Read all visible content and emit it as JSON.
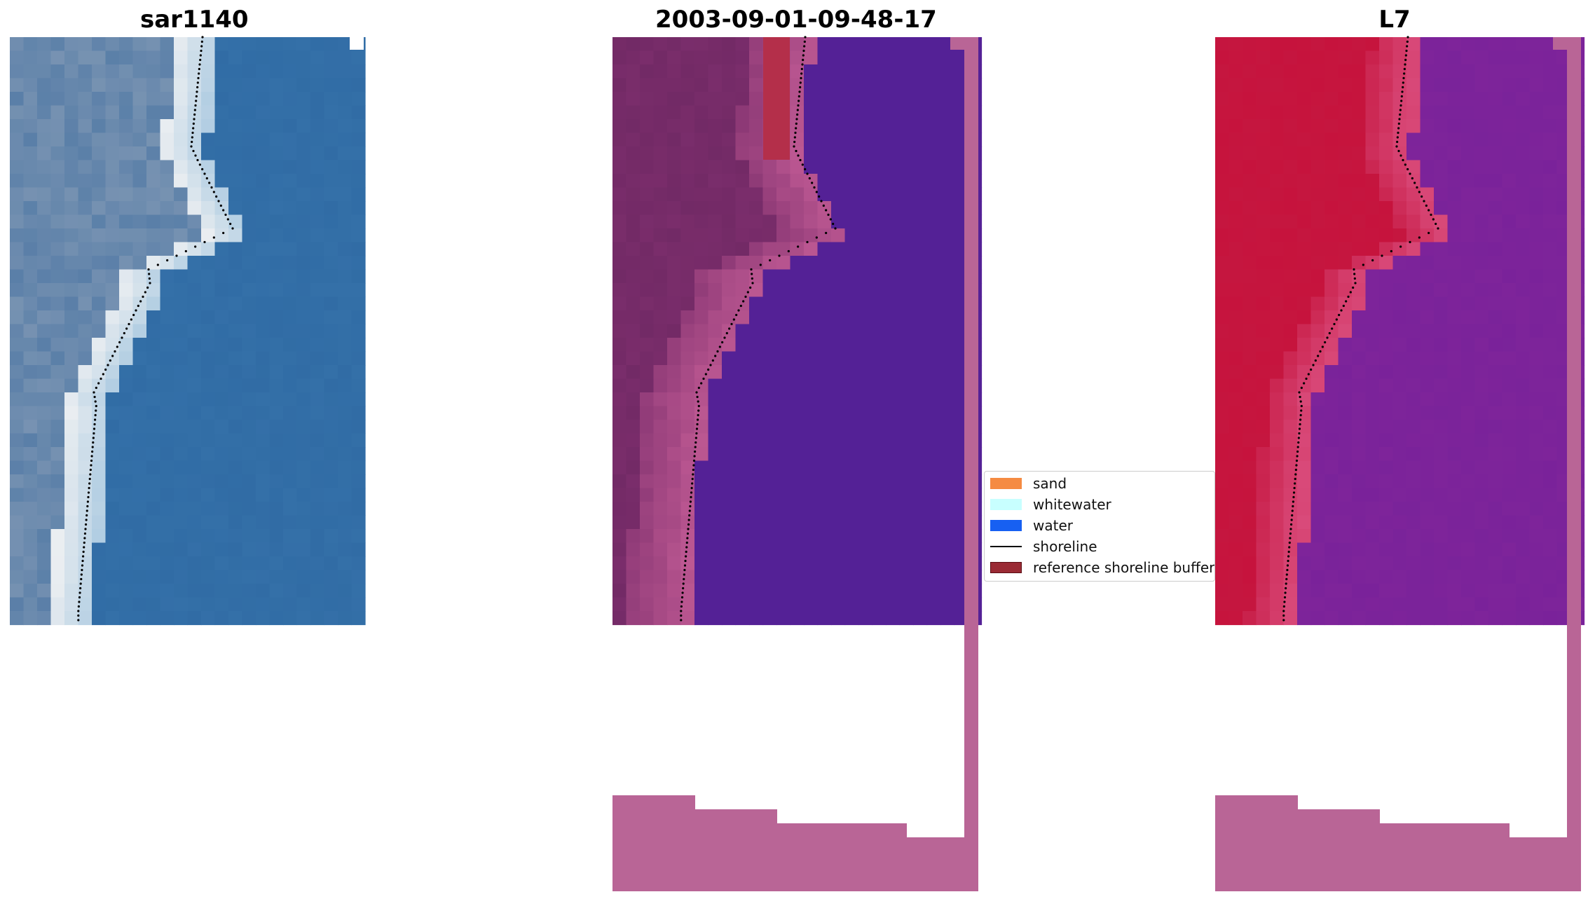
{
  "panels": [
    {
      "title": "sar1140"
    },
    {
      "title": "2003-09-01-09-48-17"
    },
    {
      "title": "L7"
    }
  ],
  "legend": {
    "entries": [
      {
        "label": "sand",
        "color": "#f58b42"
      },
      {
        "label": "whitewater",
        "color": "#c8ffff"
      },
      {
        "label": "water",
        "color": "#1760f2"
      },
      {
        "label": "shoreline",
        "color": "#000000"
      },
      {
        "label": "reference shoreline buffer",
        "color": "#9a2a34"
      }
    ]
  },
  "colors": {
    "sar_water": "#3470a8",
    "sar_sand": "#eef0f2",
    "sar_land": "#5a7fa8",
    "class_water": "#542196",
    "class_buffer": "#b42f4a",
    "class_land": "#7a2d6b",
    "class_nodata": "#b96596",
    "l7_land": "#c5163f",
    "l7_water": "#7e249a",
    "l7_nodata": "#b96596"
  }
}
